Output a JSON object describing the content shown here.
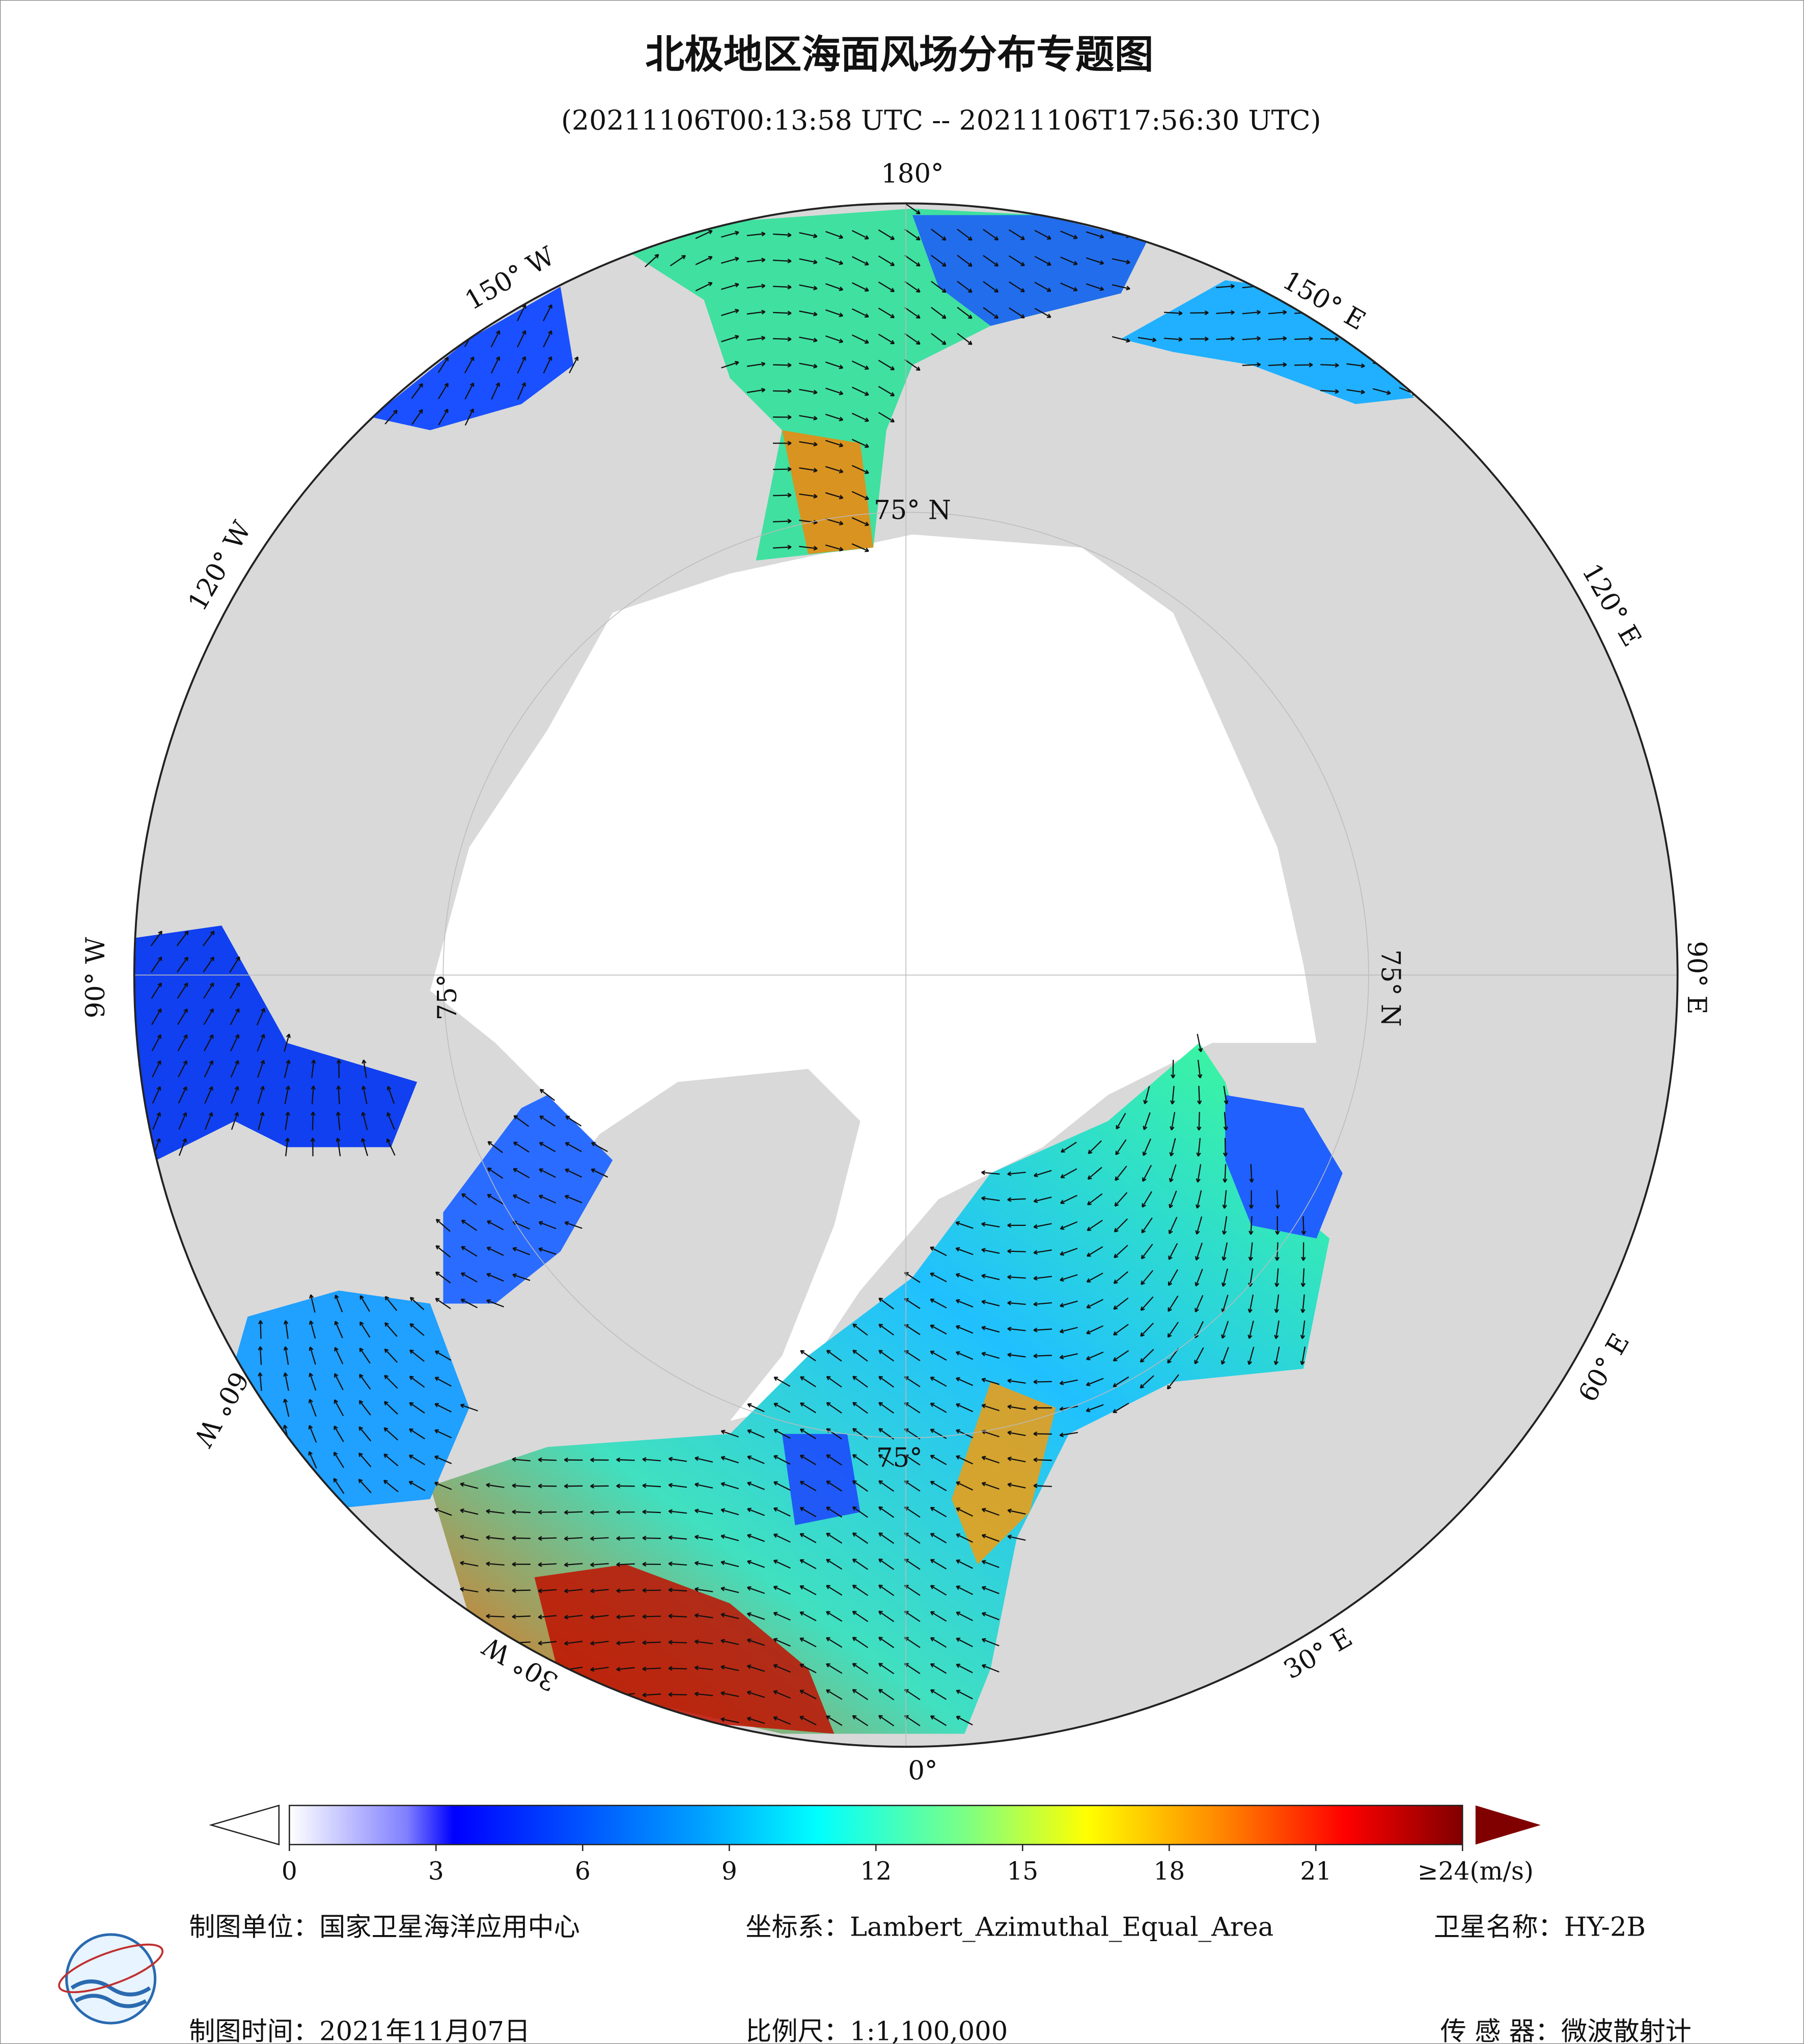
{
  "title": "北极地区海面风场分布专题图",
  "subtitle": "(20211106T00:13:58 UTC -- 20211106T17:56:30 UTC)",
  "graticule_labels": [
    "180°",
    "150° E",
    "120° E",
    "90° E",
    "60° E",
    "30° E",
    "0°",
    "30° W",
    "60° W",
    "90° W",
    "120° W",
    "150° W",
    "75° N",
    "75° N",
    "75°",
    "75°"
  ],
  "colorbar": {
    "lim": [
      0,
      24
    ],
    "ticks": [
      0,
      3,
      6,
      9,
      12,
      15,
      18,
      21,
      {
        "value": 24,
        "label": "≥24(m/s)"
      }
    ]
  },
  "footer": {
    "unit": "制图单位：国家卫星海洋应用中心",
    "crs": "坐标系：Lambert_Azimuthal_Equal_Area",
    "satellite": "卫星名称：HY-2B",
    "date": "制图时间：2021年11月07日",
    "scale": "比例尺：1:1,100,000",
    "sensor": "传 感 器：微波散射计"
  }
}
